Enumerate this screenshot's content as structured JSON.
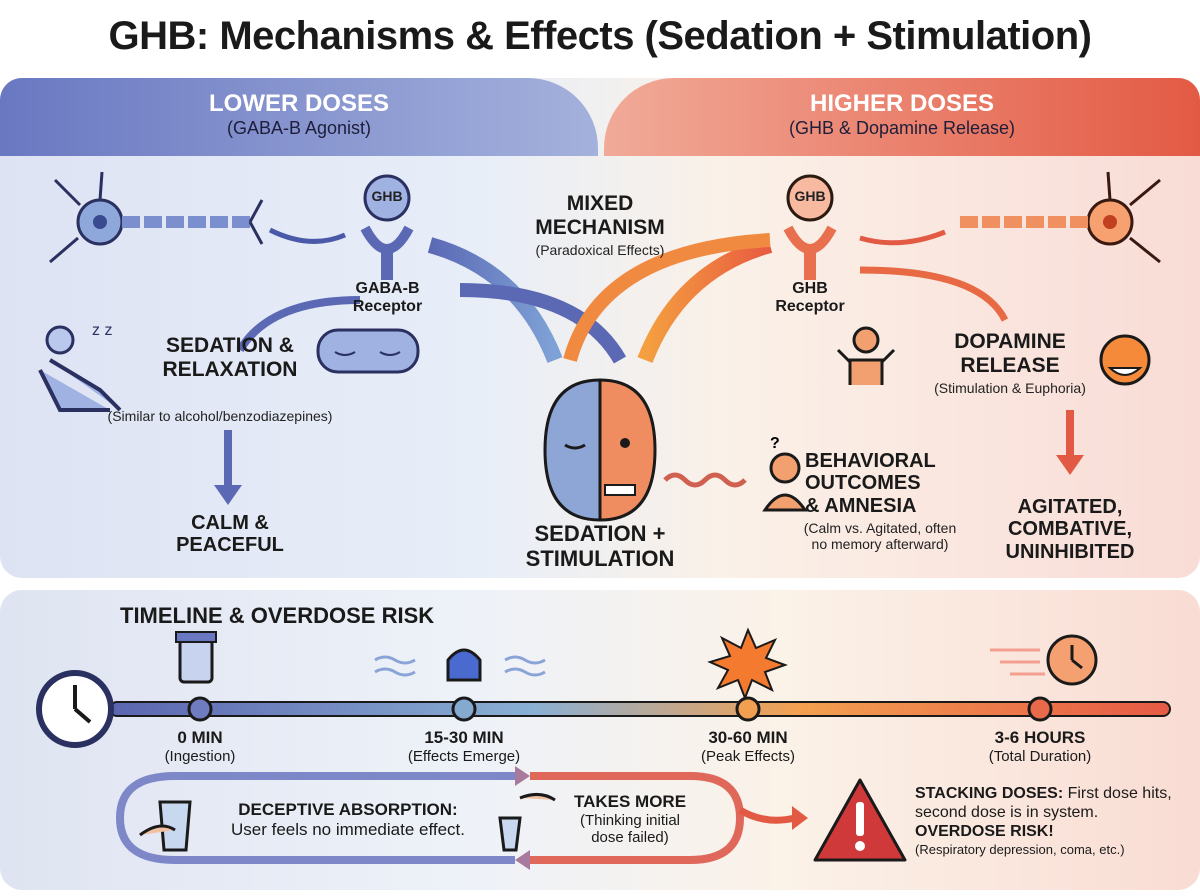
{
  "title": "GHB: Mechanisms & Effects (Sedation + Stimulation)",
  "lower": {
    "title": "LOWER DOSES",
    "subtitle": "(GABA-B Agonist)",
    "receptor_tag": "GHB",
    "receptor": "GABA-B\nReceptor",
    "effect": "SEDATION &\nRELAXATION",
    "note": "(Similar to alcohol/benzodiazepines)",
    "outcome": "CALM &\nPEACEFUL"
  },
  "higher": {
    "title": "HIGHER DOSES",
    "subtitle": "(GHB & Dopamine Release)",
    "receptor_tag": "GHB",
    "receptor": "GHB\nReceptor",
    "effect": "DOPAMINE\nRELEASE",
    "note": "(Stimulation & Euphoria)",
    "outcome": "AGITATED,\nCOMBATIVE,\nUNINHIBITED"
  },
  "mixed": {
    "title": "MIXED\nMECHANISM",
    "subtitle": "(Paradoxical Effects)",
    "result": "SEDATION +\nSTIMULATION"
  },
  "behavior": {
    "title": "BEHAVIORAL\nOUTCOMES\n& AMNESIA",
    "note": "(Calm vs. Agitated, often\nno memory afterward)"
  },
  "timeline": {
    "title": "TIMELINE & OVERDOSE RISK",
    "points": [
      {
        "label": "0 MIN",
        "sub": "(Ingestion)",
        "color": "#6f7dc0"
      },
      {
        "label": "15-30 MIN",
        "sub": "(Effects Emerge)",
        "color": "#86a9cf"
      },
      {
        "label": "30-60 MIN",
        "sub": "(Peak Effects)",
        "color": "#f0a050"
      },
      {
        "label": "3-6 HOURS",
        "sub": "(Total Duration)",
        "color": "#e96a4a"
      }
    ]
  },
  "cycle": {
    "deceptive_title": "DECEPTIVE ABSORPTION:",
    "deceptive_text": "User feels no immediate effect.",
    "takes_title": "TAKES MORE",
    "takes_text": "(Thinking initial\ndose failed)"
  },
  "warning": {
    "title": "STACKING DOSES:",
    "text": " First dose hits, second dose is in system.",
    "risk": "OVERDOSE RISK!",
    "note": "(Respiratory depression, coma, etc.)"
  },
  "colors": {
    "blue": "#6a78c2",
    "red": "#e35a44",
    "orange": "#f0963c"
  }
}
